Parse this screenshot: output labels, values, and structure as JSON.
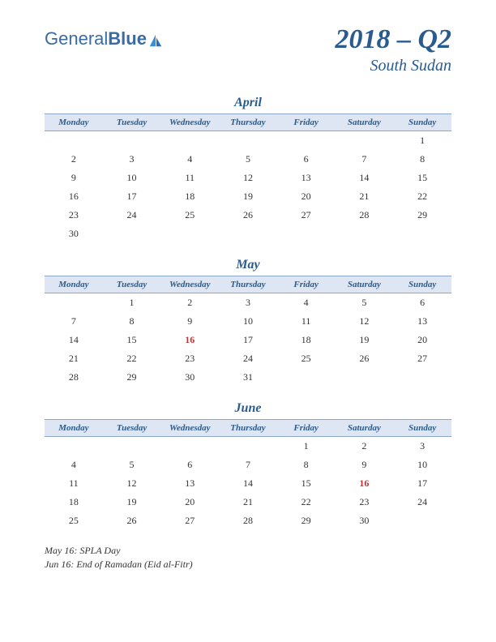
{
  "logo": {
    "text1": "General",
    "text2": "Blue"
  },
  "title": {
    "main": "2018 – Q2",
    "sub": "South Sudan"
  },
  "weekdays": [
    "Monday",
    "Tuesday",
    "Wednesday",
    "Thursday",
    "Friday",
    "Saturday",
    "Sunday"
  ],
  "months": [
    {
      "name": "April",
      "weeks": [
        [
          "",
          "",
          "",
          "",
          "",
          "",
          "1"
        ],
        [
          "2",
          "3",
          "4",
          "5",
          "6",
          "7",
          "8"
        ],
        [
          "9",
          "10",
          "11",
          "12",
          "13",
          "14",
          "15"
        ],
        [
          "16",
          "17",
          "18",
          "19",
          "20",
          "21",
          "22"
        ],
        [
          "23",
          "24",
          "25",
          "26",
          "27",
          "28",
          "29"
        ],
        [
          "30",
          "",
          "",
          "",
          "",
          "",
          ""
        ]
      ],
      "holidays": []
    },
    {
      "name": "May",
      "weeks": [
        [
          "",
          "1",
          "2",
          "3",
          "4",
          "5",
          "6"
        ],
        [
          "7",
          "8",
          "9",
          "10",
          "11",
          "12",
          "13"
        ],
        [
          "14",
          "15",
          "16",
          "17",
          "18",
          "19",
          "20"
        ],
        [
          "21",
          "22",
          "23",
          "24",
          "25",
          "26",
          "27"
        ],
        [
          "28",
          "29",
          "30",
          "31",
          "",
          "",
          ""
        ]
      ],
      "holidays": [
        "16"
      ]
    },
    {
      "name": "June",
      "weeks": [
        [
          "",
          "",
          "",
          "",
          "1",
          "2",
          "3"
        ],
        [
          "4",
          "5",
          "6",
          "7",
          "8",
          "9",
          "10"
        ],
        [
          "11",
          "12",
          "13",
          "14",
          "15",
          "16",
          "17"
        ],
        [
          "18",
          "19",
          "20",
          "21",
          "22",
          "23",
          "24"
        ],
        [
          "25",
          "26",
          "27",
          "28",
          "29",
          "30",
          ""
        ]
      ],
      "holidays": [
        "16"
      ]
    }
  ],
  "holiday_list": [
    "May 16: SPLA Day",
    "Jun 16: End of Ramadan (Eid al-Fitr)"
  ],
  "colors": {
    "accent": "#2a5b8f",
    "header_bg": "#dde6f2",
    "header_border": "#8aa7c9",
    "holiday": "#c23030",
    "text": "#333333",
    "background": "#ffffff"
  }
}
